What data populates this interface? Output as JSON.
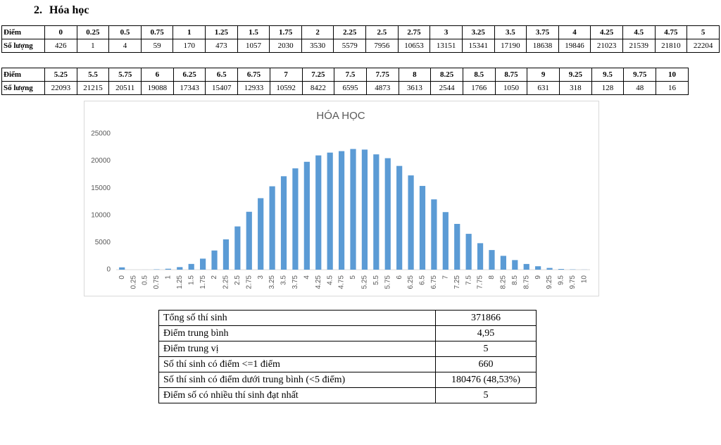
{
  "heading": {
    "number": "2.",
    "title": "Hóa học"
  },
  "table1": {
    "rows": [
      [
        "Điểm",
        0,
        0.25,
        0.5,
        0.75,
        1,
        1.25,
        1.5,
        1.75,
        2,
        2.25,
        2.5,
        2.75,
        3,
        3.25,
        3.5,
        3.75,
        4,
        4.25,
        4.5,
        4.75,
        5
      ],
      [
        "Số lượng",
        426,
        1,
        4,
        59,
        170,
        473,
        1057,
        2030,
        3530,
        5579,
        7956,
        10653,
        13151,
        15341,
        17190,
        18638,
        19846,
        21023,
        21539,
        21810,
        22204
      ]
    ]
  },
  "table2": {
    "rows": [
      [
        "Điểm",
        5.25,
        5.5,
        5.75,
        6,
        6.25,
        6.5,
        6.75,
        7,
        7.25,
        7.5,
        7.75,
        8,
        8.25,
        8.5,
        8.75,
        9,
        9.25,
        9.5,
        9.75,
        10
      ],
      [
        "Số lượng",
        22093,
        21215,
        20511,
        19088,
        17343,
        15407,
        12933,
        10592,
        8422,
        6595,
        4873,
        3613,
        2544,
        1766,
        1050,
        631,
        318,
        128,
        48,
        16
      ]
    ]
  },
  "chart_data": {
    "type": "bar",
    "title": "HÓA HỌC",
    "categories": [
      "0",
      "0.25",
      "0.5",
      "0.75",
      "1",
      "1.25",
      "1.5",
      "1.75",
      "2",
      "2.25",
      "2.5",
      "2.75",
      "3",
      "3.25",
      "3.5",
      "3.75",
      "4",
      "4.25",
      "4.5",
      "4.75",
      "5",
      "5.25",
      "5.5",
      "5.75",
      "6",
      "6.25",
      "6.5",
      "6.75",
      "7",
      "7.25",
      "7.5",
      "7.75",
      "8",
      "8.25",
      "8.5",
      "8.75",
      "9",
      "9.25",
      "9.5",
      "9.75",
      "10"
    ],
    "values": [
      426,
      1,
      4,
      59,
      170,
      473,
      1057,
      2030,
      3530,
      5579,
      7956,
      10653,
      13151,
      15341,
      17190,
      18638,
      19846,
      21023,
      21539,
      21810,
      22204,
      22093,
      21215,
      20511,
      19088,
      17343,
      15407,
      12933,
      10592,
      8422,
      6595,
      4873,
      3613,
      2544,
      1766,
      1050,
      631,
      318,
      128,
      48,
      16
    ],
    "color": "#5b9bd5",
    "ylim": [
      0,
      25000
    ],
    "yticks": [
      0,
      5000,
      10000,
      15000,
      20000,
      25000
    ],
    "grid": false
  },
  "summary": {
    "rows": [
      [
        "Tổng số thí sinh",
        371866
      ],
      [
        "Điểm trung bình",
        "4,95"
      ],
      [
        "Điểm trung vị",
        5
      ],
      [
        "Số thí sinh có điểm <=1 điểm",
        660
      ],
      [
        "Số thí sinh có điểm dưới trung bình (<5 điểm)",
        "180476 (48,53%)"
      ],
      [
        "Điểm số có nhiều thí sinh đạt nhất",
        5
      ]
    ]
  }
}
